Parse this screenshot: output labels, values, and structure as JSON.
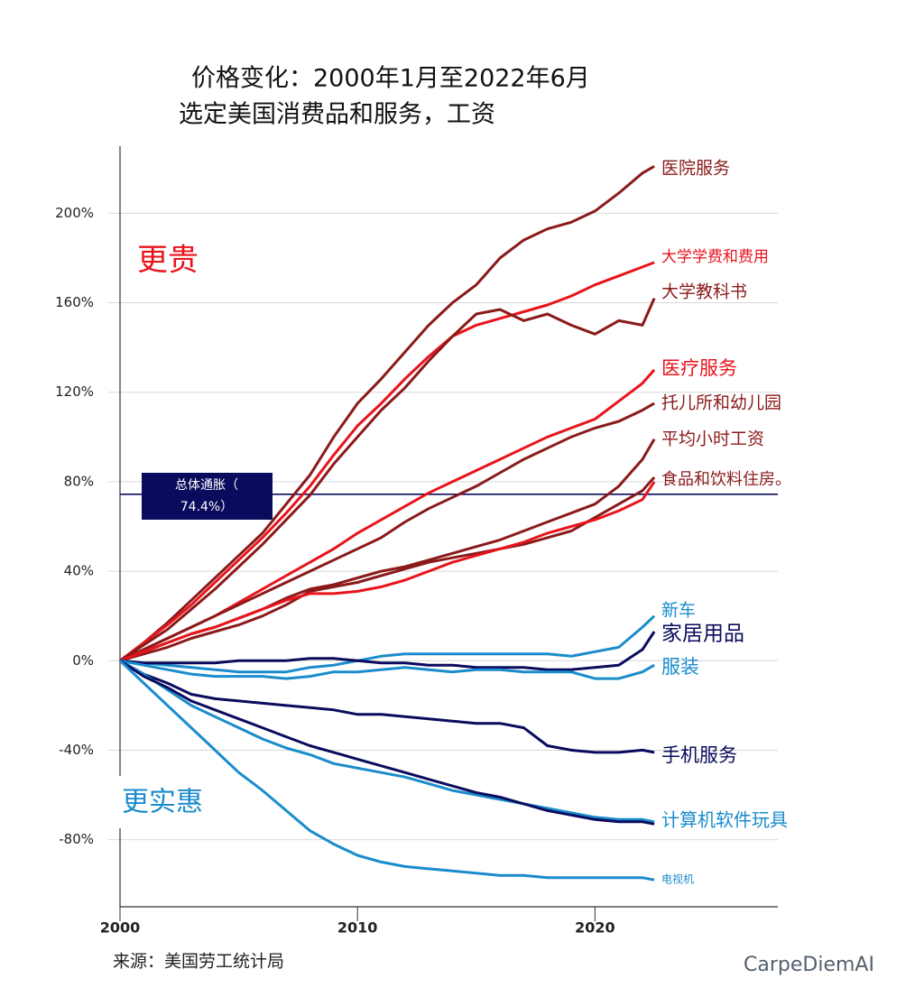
{
  "chart_data": {
    "type": "line",
    "title": "价格变化：2000年1月至2022年6月",
    "subtitle": "选定美国消费品和服务，工资",
    "x": [
      2000,
      2001,
      2002,
      2003,
      2004,
      2005,
      2006,
      2007,
      2008,
      2009,
      2010,
      2011,
      2012,
      2013,
      2014,
      2015,
      2016,
      2017,
      2018,
      2019,
      2020,
      2021,
      2022,
      2022.5
    ],
    "xlim": [
      2000,
      2027.7
    ],
    "xticks": [
      2000,
      2010,
      2020
    ],
    "ylim": [
      -110,
      230
    ],
    "yticks": [
      {
        "value": -80,
        "label": "-80%"
      },
      {
        "value": -40,
        "label": "-40%"
      },
      {
        "value": 0,
        "label": "0%"
      },
      {
        "value": 40,
        "label": "40%"
      },
      {
        "value": 80,
        "label": "80%"
      },
      {
        "value": 120,
        "label": "120%"
      },
      {
        "value": 160,
        "label": "160%"
      },
      {
        "value": 200,
        "label": "200%"
      }
    ],
    "grid": true,
    "series": [
      {
        "name": "医院服务",
        "color": "#8b1a1a",
        "values": [
          0,
          8,
          17,
          27,
          37,
          47,
          57,
          70,
          83,
          100,
          115,
          126,
          138,
          150,
          160,
          168,
          180,
          188,
          193,
          196,
          201,
          209,
          218,
          221
        ]
      },
      {
        "name": "大学学费和费用",
        "color": "#e8141c",
        "values": [
          0,
          8,
          16,
          25,
          35,
          45,
          55,
          66,
          78,
          92,
          105,
          115,
          126,
          136,
          145,
          150,
          153,
          156,
          159,
          163,
          168,
          172,
          176,
          178
        ]
      },
      {
        "name": "大学教科书",
        "color": "#8b1a1a",
        "values": [
          0,
          7,
          14,
          23,
          32,
          42,
          52,
          63,
          74,
          88,
          100,
          112,
          122,
          134,
          145,
          155,
          157,
          152,
          155,
          150,
          146,
          152,
          150,
          162
        ]
      },
      {
        "name": "医疗服务",
        "color": "#e8141c",
        "values": [
          0,
          5,
          10,
          15,
          20,
          26,
          32,
          38,
          44,
          50,
          57,
          63,
          69,
          75,
          80,
          85,
          90,
          95,
          100,
          104,
          108,
          116,
          124,
          130
        ]
      },
      {
        "name": "托儿所和幼儿园",
        "color": "#8b1a1a",
        "values": [
          0,
          5,
          10,
          15,
          20,
          25,
          30,
          35,
          40,
          45,
          50,
          55,
          62,
          68,
          73,
          78,
          84,
          90,
          95,
          100,
          104,
          107,
          112,
          115
        ]
      },
      {
        "name": "平均小时工资",
        "color": "#8b1a1a",
        "values": [
          0,
          4,
          8,
          12,
          15,
          19,
          23,
          28,
          32,
          34,
          37,
          40,
          42,
          45,
          48,
          51,
          54,
          58,
          62,
          66,
          70,
          78,
          90,
          99
        ]
      },
      {
        "name": "食品和饮料住房。",
        "color": "#8b1a1a",
        "values": [
          0,
          3,
          6,
          10,
          13,
          16,
          20,
          25,
          31,
          33,
          35,
          38,
          41,
          44,
          46,
          48,
          50,
          52,
          55,
          58,
          64,
          70,
          76,
          82
        ]
      },
      {
        "color": "#e8141c",
        "values": [
          0,
          4,
          8,
          12,
          15,
          19,
          23,
          27,
          30,
          30,
          31,
          33,
          36,
          40,
          44,
          47,
          50,
          53,
          57,
          60,
          63,
          67,
          72,
          80
        ]
      },
      {
        "name": "新车",
        "color": "#1a8ccc",
        "values": [
          0,
          -1,
          -2,
          -3,
          -4,
          -5,
          -5,
          -5,
          -3,
          -2,
          0,
          2,
          3,
          3,
          3,
          3,
          3,
          3,
          3,
          2,
          4,
          6,
          15,
          20
        ]
      },
      {
        "name": "家居用品",
        "color": "#0b0b5e",
        "values": [
          0,
          -1,
          -1,
          -1,
          -1,
          0,
          0,
          0,
          1,
          1,
          0,
          -1,
          -1,
          -2,
          -2,
          -3,
          -3,
          -3,
          -4,
          -4,
          -3,
          -2,
          5,
          13
        ]
      },
      {
        "name": "服装",
        "color": "#1a8ccc",
        "values": [
          0,
          -2,
          -4,
          -6,
          -7,
          -7,
          -7,
          -8,
          -7,
          -5,
          -5,
          -4,
          -3,
          -4,
          -5,
          -4,
          -4,
          -5,
          -5,
          -5,
          -8,
          -8,
          -5,
          -2
        ]
      },
      {
        "name": "手机服务",
        "color": "#0b0b5e",
        "values": [
          0,
          -6,
          -10,
          -15,
          -17,
          -18,
          -19,
          -20,
          -21,
          -22,
          -24,
          -24,
          -25,
          -26,
          -27,
          -28,
          -28,
          -30,
          -38,
          -40,
          -41,
          -41,
          -40,
          -41
        ]
      },
      {
        "name": "计算机软件玩具",
        "color": "#1a8ccc",
        "values": [
          0,
          -6,
          -13,
          -20,
          -25,
          -30,
          -35,
          -39,
          -42,
          -46,
          -48,
          -50,
          -52,
          -55,
          -58,
          -60,
          -62,
          -64,
          -66,
          -68,
          -70,
          -71,
          -71,
          -72
        ]
      },
      {
        "color": "#0b0b5e",
        "values": [
          0,
          -7,
          -12,
          -18,
          -22,
          -26,
          -30,
          -34,
          -38,
          -41,
          -44,
          -47,
          -50,
          -53,
          -56,
          -59,
          -61,
          -64,
          -67,
          -69,
          -71,
          -72,
          -72,
          -73
        ]
      },
      {
        "name": "电视机",
        "color": "#1a8ccc",
        "values": [
          0,
          -10,
          -20,
          -30,
          -40,
          -50,
          -58,
          -67,
          -76,
          -82,
          -87,
          -90,
          -92,
          -93,
          -94,
          -95,
          -96,
          -96,
          -97,
          -97,
          -97,
          -97,
          -97,
          -98
        ]
      }
    ],
    "inflation": {
      "value": 74.4,
      "label": [
        "总体通胀（",
        "74.4%）"
      ],
      "color": "#0b0b5e"
    },
    "annotations": [
      {
        "text": "更贵",
        "color": "#e8141c"
      },
      {
        "text": "更实惠",
        "color": "#1a8ccc"
      }
    ],
    "source": "来源：美国劳工统计局",
    "watermark": "CarpeDiemAI"
  }
}
